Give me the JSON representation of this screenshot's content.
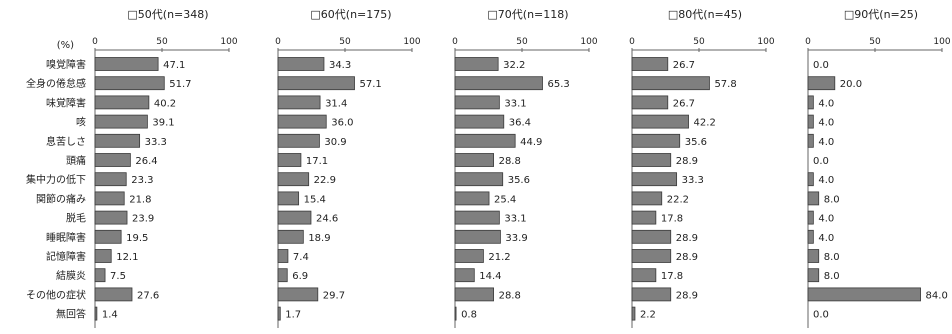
{
  "chart_data": {
    "type": "bar",
    "orientation": "horizontal",
    "unit_label": "(%)",
    "xlim": [
      0,
      100
    ],
    "x_ticks": [
      0,
      50,
      100
    ],
    "categories": [
      "嗅覚障害",
      "全身の倦怠感",
      "味覚障害",
      "咳",
      "息苦しさ",
      "頭痛",
      "集中力の低下",
      "関節の痛み",
      "脱毛",
      "睡眠障害",
      "記憶障害",
      "結膜炎",
      "その他の症状",
      "無回答"
    ],
    "panels": [
      {
        "title": "□50代(n=348)",
        "values": [
          "47.1",
          "51.7",
          "40.2",
          "39.1",
          "33.3",
          "26.4",
          "23.3",
          "21.8",
          "23.9",
          "19.5",
          "12.1",
          "7.5",
          "27.6",
          "1.4"
        ]
      },
      {
        "title": "□60代(n=175)",
        "values": [
          "34.3",
          "57.1",
          "31.4",
          "36.0",
          "30.9",
          "17.1",
          "22.9",
          "15.4",
          "24.6",
          "18.9",
          "7.4",
          "6.9",
          "29.7",
          "1.7"
        ]
      },
      {
        "title": "□70代(n=118)",
        "values": [
          "32.2",
          "65.3",
          "33.1",
          "36.4",
          "44.9",
          "28.8",
          "35.6",
          "25.4",
          "33.1",
          "33.9",
          "21.2",
          "14.4",
          "28.8",
          "0.8"
        ]
      },
      {
        "title": "□80代(n=45)",
        "values": [
          "26.7",
          "57.8",
          "26.7",
          "42.2",
          "35.6",
          "28.9",
          "33.3",
          "22.2",
          "17.8",
          "28.9",
          "28.9",
          "17.8",
          "28.9",
          "2.2"
        ]
      },
      {
        "title": "□90代(n=25)",
        "values": [
          "0.0",
          "20.0",
          "4.0",
          "4.0",
          "4.0",
          "0.0",
          "4.0",
          "8.0",
          "4.0",
          "4.0",
          "8.0",
          "8.0",
          "84.0",
          "0.0"
        ]
      }
    ]
  },
  "colors": {
    "bar_fill": "#7f7f7f",
    "bar_stroke": "#3a3a3a",
    "axis": "#666666"
  }
}
